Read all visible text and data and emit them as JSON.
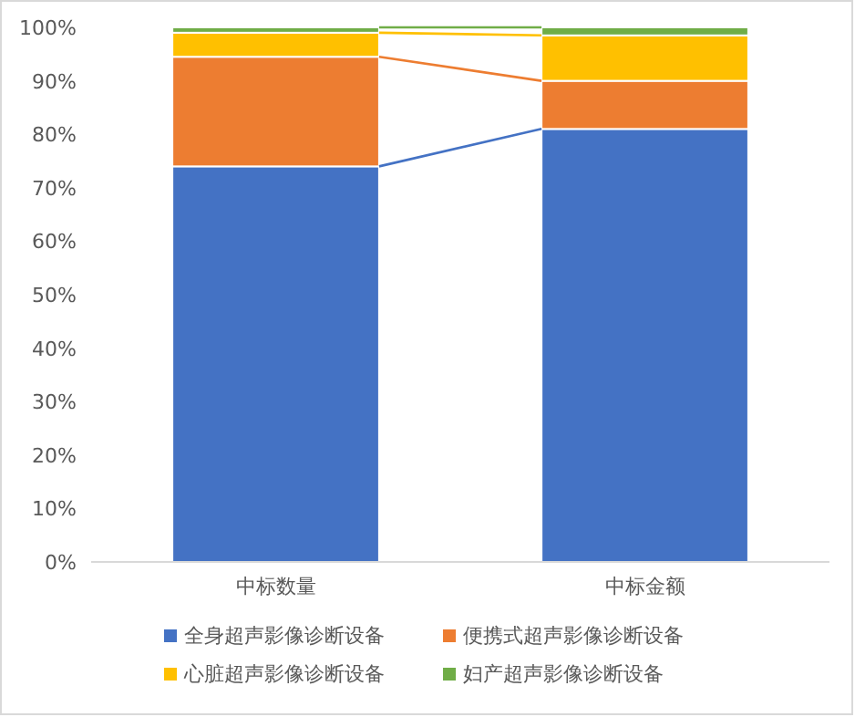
{
  "chart_data": {
    "type": "bar",
    "stacked": true,
    "categories": [
      "中标数量",
      "中标金额"
    ],
    "series": [
      {
        "name": "全身超声影像诊断设备",
        "color": "#4472c4",
        "values": [
          74,
          81
        ]
      },
      {
        "name": "便携式超声影像诊断设备",
        "color": "#ed7d31",
        "values": [
          20.5,
          9
        ]
      },
      {
        "name": "心脏超声影像诊断设备",
        "color": "#ffc000",
        "values": [
          4.5,
          8.5
        ]
      },
      {
        "name": "妇产超声影像诊断设备",
        "color": "#70ad47",
        "values": [
          1,
          1.5
        ]
      }
    ],
    "ylim": [
      0,
      100
    ],
    "yticks": [
      {
        "value": 0,
        "label": "0%"
      },
      {
        "value": 10,
        "label": "10%"
      },
      {
        "value": 20,
        "label": "20%"
      },
      {
        "value": 30,
        "label": "30%"
      },
      {
        "value": 40,
        "label": "40%"
      },
      {
        "value": 50,
        "label": "50%"
      },
      {
        "value": 60,
        "label": "60%"
      },
      {
        "value": 70,
        "label": "70%"
      },
      {
        "value": 80,
        "label": "80%"
      },
      {
        "value": 90,
        "label": "90%"
      },
      {
        "value": 100,
        "label": "100%"
      }
    ],
    "grid": false,
    "legend": "bottom"
  }
}
